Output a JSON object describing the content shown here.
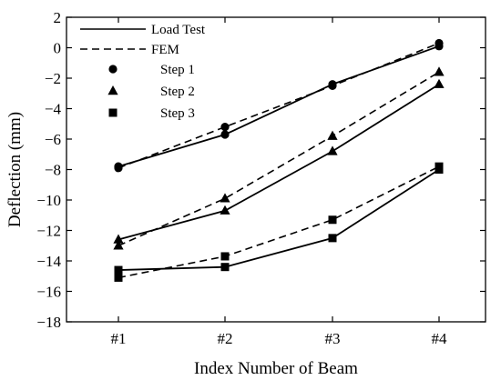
{
  "chart_data": {
    "type": "line",
    "title": "",
    "xlabel": "Index Number of Beam",
    "ylabel": "Deflection (mm)",
    "categories": [
      "#1",
      "#2",
      "#3",
      "#4"
    ],
    "ylim": [
      -18,
      2
    ],
    "yticks": [
      2,
      0,
      -2,
      -4,
      -6,
      -8,
      -10,
      -12,
      -14,
      -16,
      -18
    ],
    "grid": false,
    "legend_position": "top-left",
    "legend": {
      "line_styles": [
        {
          "label": "Load Test",
          "style": "solid"
        },
        {
          "label": "FEM",
          "style": "dashed"
        }
      ],
      "markers": [
        {
          "label": "Step 1",
          "marker": "circle"
        },
        {
          "label": "Step 2",
          "marker": "triangle"
        },
        {
          "label": "Step 3",
          "marker": "square"
        }
      ]
    },
    "series": [
      {
        "name": "Step 1",
        "marker": "circle",
        "load_test": [
          -7.8,
          -5.7,
          -2.4,
          0.1
        ],
        "fem": [
          -7.9,
          -5.2,
          -2.5,
          0.3
        ]
      },
      {
        "name": "Step 2",
        "marker": "triangle",
        "load_test": [
          -12.6,
          -10.7,
          -6.8,
          -2.4
        ],
        "fem": [
          -13.0,
          -9.9,
          -5.8,
          -1.6
        ]
      },
      {
        "name": "Step 3",
        "marker": "square",
        "load_test": [
          -14.6,
          -14.4,
          -12.5,
          -8.0
        ],
        "fem": [
          -15.1,
          -13.7,
          -11.3,
          -7.8
        ]
      }
    ],
    "colors": {
      "line": "#000000",
      "marker": "#000000"
    }
  }
}
